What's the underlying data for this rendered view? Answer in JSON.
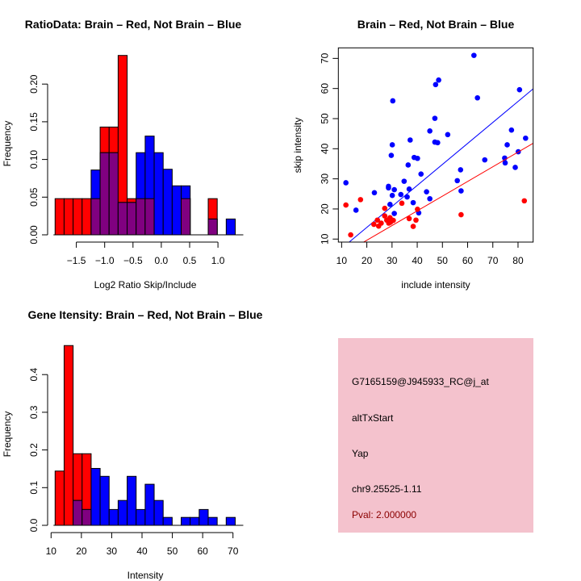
{
  "chart_data": [
    {
      "type": "bar",
      "title": "RatioData: Brain – Red, Not Brain – Blue",
      "xlabel": "Log2 Ratio Skip/Include",
      "ylabel": "Frequency",
      "xticks": [
        -1.5,
        -1.0,
        -0.5,
        0.0,
        0.5,
        1.0
      ],
      "xtick_labels": [
        "−1.5",
        "−1.0",
        "−0.5",
        "0.0",
        "0.5",
        "1.0"
      ],
      "yticks": [
        0,
        0.05,
        0.1,
        0.15,
        0.2
      ],
      "ytick_labels": [
        "0.00",
        "0.05",
        "0.10",
        "0.15",
        "0.20"
      ],
      "bin_start": -1.875,
      "bin_width": 0.159,
      "series": [
        {
          "name": "Brain",
          "color": "#ff0000",
          "values": [
            0.048,
            0.048,
            0.048,
            0.048,
            0.048,
            0.143,
            0.143,
            0.238,
            0.048,
            0.048,
            0.048,
            0,
            0,
            0,
            0.048,
            0,
            0,
            0.048,
            0,
            0
          ]
        },
        {
          "name": "Not Brain",
          "color": "#0000ff",
          "values": [
            0,
            0,
            0,
            0,
            0.086,
            0.109,
            0.109,
            0.043,
            0.043,
            0.109,
            0.131,
            0.109,
            0.087,
            0.065,
            0.065,
            0,
            0,
            0.021,
            0,
            0.021
          ]
        }
      ],
      "overlap_color": "#800080"
    },
    {
      "type": "scatter",
      "title": "Brain – Red, Not Brain – Blue",
      "xlabel": "include intensity",
      "ylabel": "skip intensity",
      "xlim": [
        8.7,
        86
      ],
      "ylim": [
        9,
        73.5
      ],
      "xticks": [
        10,
        20,
        30,
        40,
        50,
        60,
        70,
        80
      ],
      "yticks": [
        10,
        20,
        30,
        40,
        50,
        60,
        70
      ],
      "series": [
        {
          "name": "Not Brain",
          "color": "#0000ff",
          "points": [
            [
              11.7,
              28.7
            ],
            [
              15.7,
              19.6
            ],
            [
              23.0,
              25.4
            ],
            [
              28.6,
              27.5
            ],
            [
              28.6,
              27.0
            ],
            [
              29.2,
              21.5
            ],
            [
              29.7,
              37.8
            ],
            [
              30.1,
              41.3
            ],
            [
              30.3,
              55.9
            ],
            [
              30.1,
              24.5
            ],
            [
              30.9,
              26.4
            ],
            [
              30.9,
              18.5
            ],
            [
              33.5,
              24.8
            ],
            [
              34.8,
              29.2
            ],
            [
              36.0,
              24.0
            ],
            [
              36.4,
              34.6
            ],
            [
              36.8,
              26.6
            ],
            [
              37.2,
              42.9
            ],
            [
              38.4,
              22.1
            ],
            [
              38.8,
              37.1
            ],
            [
              40.1,
              36.8
            ],
            [
              40.6,
              18.7
            ],
            [
              41.5,
              31.6
            ],
            [
              43.7,
              25.7
            ],
            [
              45.0,
              45.9
            ],
            [
              45.0,
              23.4
            ],
            [
              47.0,
              50.1
            ],
            [
              47.0,
              42.2
            ],
            [
              47.3,
              61.3
            ],
            [
              48.1,
              42.0
            ],
            [
              48.5,
              62.8
            ],
            [
              52.1,
              44.7
            ],
            [
              55.9,
              29.4
            ],
            [
              57.2,
              33.0
            ],
            [
              57.4,
              26.0
            ],
            [
              62.5,
              71.0
            ],
            [
              63.9,
              56.9
            ],
            [
              66.8,
              36.3
            ],
            [
              74.7,
              36.9
            ],
            [
              74.9,
              35.3
            ],
            [
              75.7,
              41.3
            ],
            [
              77.4,
              46.2
            ],
            [
              78.9,
              33.8
            ],
            [
              80.1,
              39.0
            ],
            [
              80.6,
              59.6
            ],
            [
              83.0,
              43.5
            ]
          ],
          "fit": {
            "intercept": -0.06,
            "slope": 0.697
          }
        },
        {
          "name": "Brain",
          "color": "#ff0000",
          "points": [
            [
              11.7,
              21.3
            ],
            [
              13.6,
              11.4
            ],
            [
              17.5,
              23.1
            ],
            [
              22.8,
              14.9
            ],
            [
              24.2,
              16.3
            ],
            [
              24.7,
              14.3
            ],
            [
              25.7,
              15.3
            ],
            [
              27.1,
              20.2
            ],
            [
              27.1,
              17.7
            ],
            [
              27.9,
              16.3
            ],
            [
              28.7,
              15.3
            ],
            [
              29.2,
              17.1
            ],
            [
              29.4,
              15.6
            ],
            [
              30.1,
              16.3
            ],
            [
              30.5,
              16.2
            ],
            [
              33.9,
              21.9
            ],
            [
              36.8,
              16.8
            ],
            [
              38.4,
              14.2
            ],
            [
              39.5,
              16.3
            ],
            [
              40.1,
              19.9
            ],
            [
              57.4,
              18.1
            ],
            [
              82.5,
              22.7
            ]
          ],
          "fit": {
            "intercept": -0.15,
            "slope": 0.488
          }
        }
      ]
    },
    {
      "type": "bar",
      "title": "Gene Itensity: Brain – Red, Not Brain – Blue",
      "xlabel": "Intensity",
      "ylabel": "Frequency",
      "xticks": [
        10,
        20,
        30,
        40,
        50,
        60,
        70
      ],
      "xtick_labels": [
        "10",
        "20",
        "30",
        "40",
        "50",
        "60",
        "70"
      ],
      "yticks": [
        0,
        0.1,
        0.2,
        0.3,
        0.4
      ],
      "ytick_labels": [
        "0.0",
        "0.1",
        "0.2",
        "0.3",
        "0.4"
      ],
      "bin_start": 11.33,
      "bin_width": 2.97,
      "series": [
        {
          "name": "Brain",
          "color": "#ff0000",
          "values": [
            0.144,
            0.477,
            0.19,
            0.19,
            0,
            0,
            0,
            0,
            0,
            0,
            0,
            0,
            0,
            0,
            0,
            0,
            0,
            0,
            0,
            0
          ]
        },
        {
          "name": "Not Brain",
          "color": "#0000ff",
          "values": [
            0,
            0,
            0.066,
            0.042,
            0.151,
            0.13,
            0.042,
            0.066,
            0.13,
            0.042,
            0.109,
            0.066,
            0.021,
            0,
            0.021,
            0.021,
            0.042,
            0.021,
            0,
            0.021
          ]
        }
      ],
      "overlap_color": "#800080"
    }
  ],
  "info_panel": {
    "background": "#f4c2cd",
    "probe": "G7165159@J945933_RC@j_at",
    "event_type": "altTxStart",
    "gene": "Yap",
    "location": "chr9.25525-1.11",
    "pval": "Pval: 2.000000",
    "pval_color": "#8b0000"
  }
}
